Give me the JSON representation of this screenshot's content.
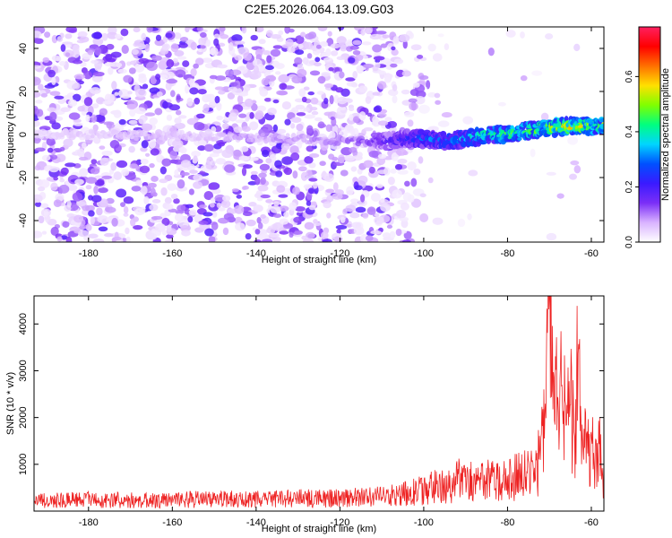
{
  "chart_data": [
    {
      "type": "heatmap",
      "title": "C2E5.2026.064.13.09.G03",
      "xlabel": "Height of straight line (km)",
      "ylabel": "Frequency (Hz)",
      "xlim": [
        -193,
        -57
      ],
      "ylim": [
        -50,
        50
      ],
      "xticks": [
        -180,
        -160,
        -140,
        -120,
        -100,
        -80,
        -60
      ],
      "yticks": [
        -40,
        -20,
        0,
        20,
        40
      ],
      "colorbar": {
        "label": "Normalized spectral amplitude",
        "range": [
          0.0,
          0.78
        ],
        "ticks": [
          0.0,
          0.2,
          0.4,
          0.6
        ],
        "tick_labels": [
          "0.0",
          "0.2",
          "0.4",
          "0.6"
        ],
        "colormap": [
          "#ffffff",
          "#d9b3ff",
          "#7b2ff7",
          "#3a1aff",
          "#0050ff",
          "#00d5ff",
          "#00ff80",
          "#7fff00",
          "#ffe000",
          "#ff7000",
          "#ff0000",
          "#ff2060"
        ]
      },
      "signal_track": [
        {
          "x": -193,
          "y": 0,
          "amp": 0.05
        },
        {
          "x": -170,
          "y": 0,
          "amp": 0.07
        },
        {
          "x": -150,
          "y": -1,
          "amp": 0.08
        },
        {
          "x": -130,
          "y": -2,
          "amp": 0.1
        },
        {
          "x": -120,
          "y": -3,
          "amp": 0.12
        },
        {
          "x": -110,
          "y": -3,
          "amp": 0.18
        },
        {
          "x": -105,
          "y": -2,
          "amp": 0.25
        },
        {
          "x": -100,
          "y": -2,
          "amp": 0.3
        },
        {
          "x": -95,
          "y": -3,
          "amp": 0.32
        },
        {
          "x": -90,
          "y": -2,
          "amp": 0.36
        },
        {
          "x": -85,
          "y": 0,
          "amp": 0.45
        },
        {
          "x": -80,
          "y": 0,
          "amp": 0.5
        },
        {
          "x": -75,
          "y": 2,
          "amp": 0.48
        },
        {
          "x": -70,
          "y": 3,
          "amp": 0.55
        },
        {
          "x": -65,
          "y": 4,
          "amp": 0.6
        },
        {
          "x": -60,
          "y": 4,
          "amp": 0.52
        },
        {
          "x": -57,
          "y": 4,
          "amp": 0.5
        }
      ]
    },
    {
      "type": "line",
      "xlabel": "Height of straight line (km)",
      "ylabel": "SNR (10 * v/v)",
      "xlim": [
        -193,
        -57
      ],
      "ylim": [
        0,
        4600
      ],
      "xticks": [
        -180,
        -160,
        -140,
        -120,
        -100,
        -80,
        -60
      ],
      "yticks": [
        1000,
        2000,
        3000,
        4000
      ],
      "color": "#ee2222",
      "series": [
        {
          "name": "SNR",
          "x": [
            -193,
            -190,
            -185,
            -180,
            -175,
            -170,
            -165,
            -160,
            -155,
            -150,
            -145,
            -140,
            -135,
            -130,
            -125,
            -120,
            -115,
            -110,
            -105,
            -103,
            -100,
            -97,
            -95,
            -92,
            -90,
            -88,
            -85,
            -83,
            -80,
            -78,
            -75,
            -73,
            -72,
            -71,
            -70,
            -69,
            -68,
            -67,
            -66,
            -65,
            -64,
            -63,
            -62,
            -61,
            -60,
            -59,
            -58,
            -57
          ],
          "values": [
            250,
            260,
            250,
            270,
            260,
            250,
            240,
            250,
            270,
            260,
            280,
            270,
            280,
            300,
            290,
            300,
            320,
            330,
            380,
            450,
            480,
            560,
            620,
            700,
            760,
            680,
            700,
            730,
            720,
            780,
            850,
            900,
            1600,
            2200,
            4600,
            2900,
            2400,
            2700,
            1800,
            2300,
            1600,
            3650,
            1300,
            1700,
            1500,
            1200,
            1300,
            1000
          ]
        }
      ]
    }
  ]
}
